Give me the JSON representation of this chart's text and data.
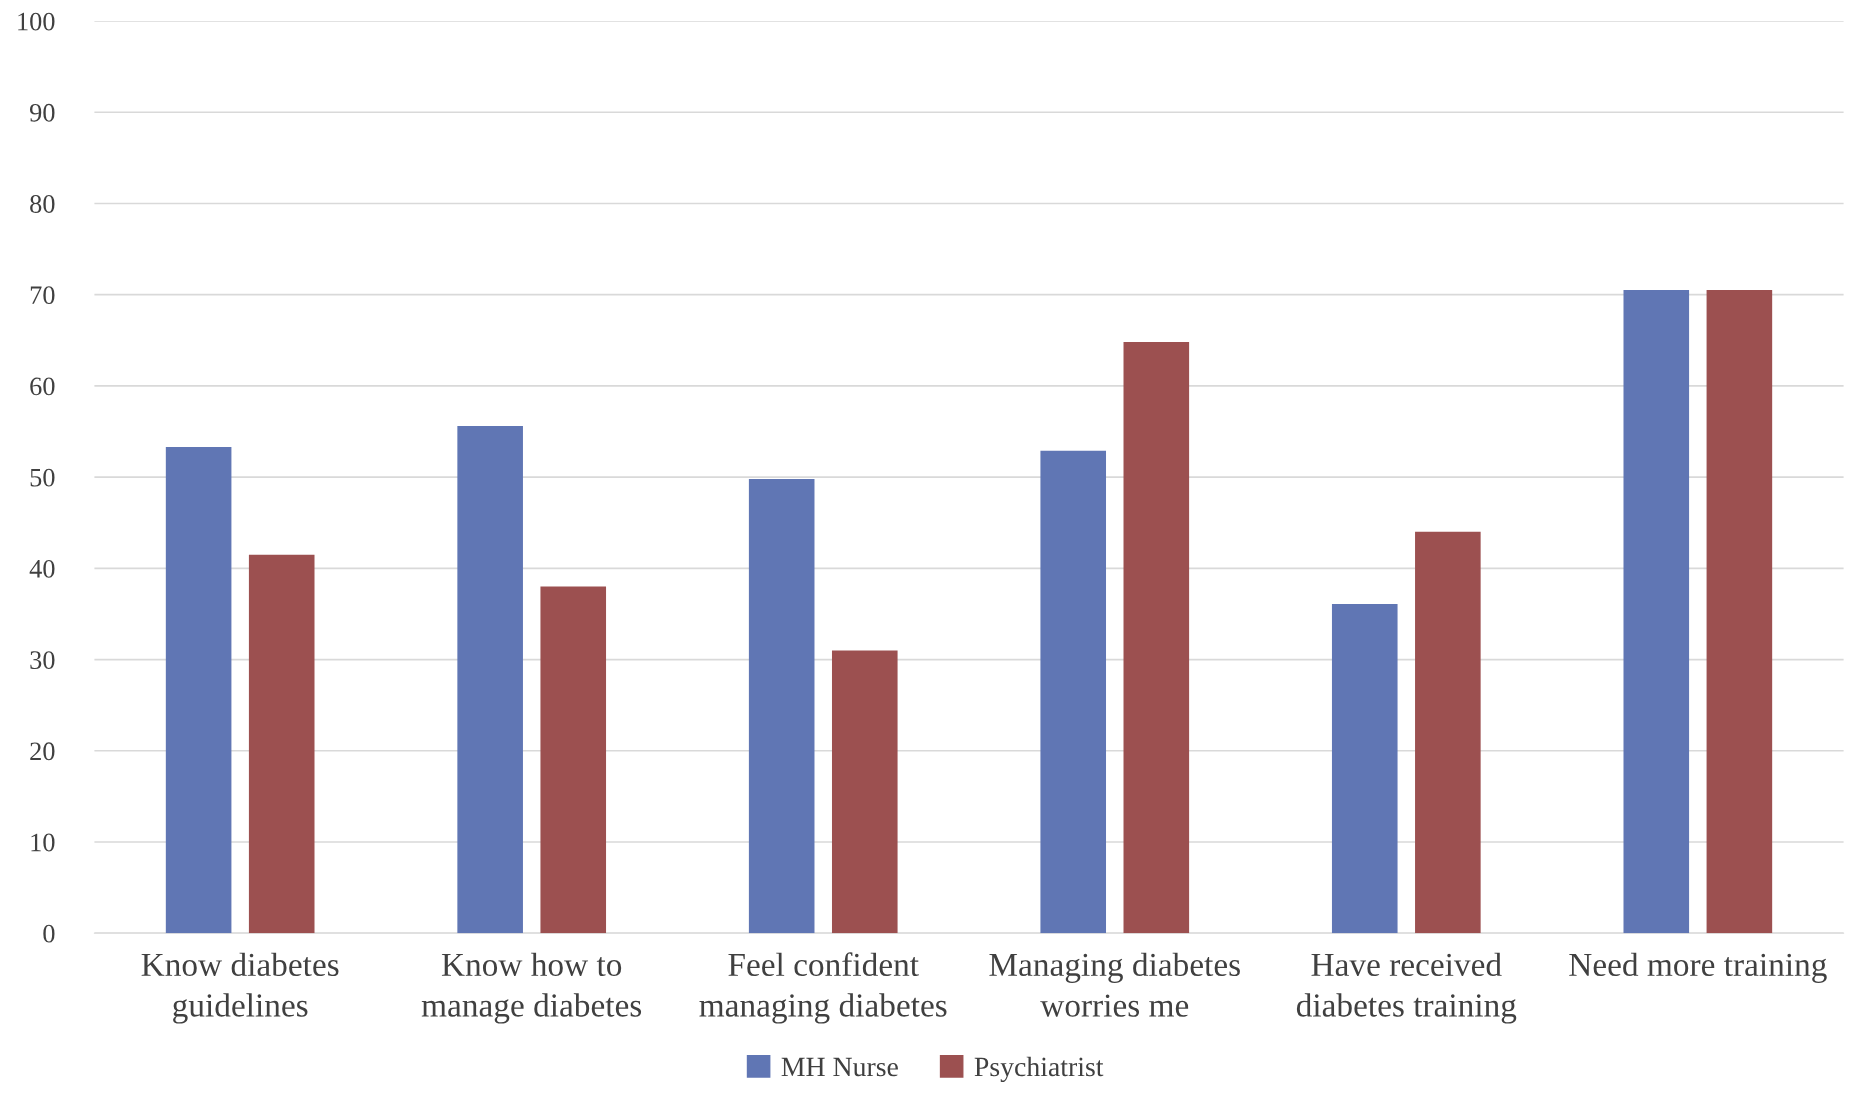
{
  "chart_data": {
    "type": "bar",
    "categories": [
      "Know diabetes\nguidelines",
      "Know how to\nmanage diabetes",
      "Feel confident\nmanaging diabetes",
      "Managing diabetes\nworries me",
      "Have received\ndiabetes training",
      "Need more training"
    ],
    "series": [
      {
        "name": "MH Nurse",
        "color": "#6076b4",
        "values": [
          53.3,
          55.6,
          49.8,
          52.9,
          36.1,
          70.5
        ]
      },
      {
        "name": "Psychiatrist",
        "color": "#9c5050",
        "values": [
          41.5,
          38.0,
          31.0,
          64.8,
          44.0,
          70.5
        ]
      }
    ],
    "ylim": [
      0,
      100
    ],
    "yticks": [
      0,
      10,
      20,
      30,
      40,
      50,
      60,
      70,
      80,
      90,
      100
    ],
    "grid": "y",
    "legend": "bottom"
  }
}
